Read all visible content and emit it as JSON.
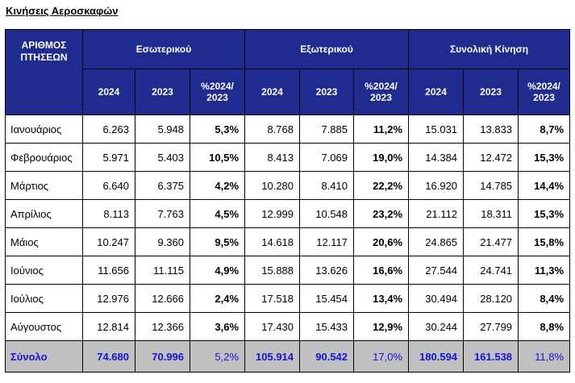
{
  "title": "Κινήσεις Αεροσκαφών",
  "header": {
    "col0": "ΑΡΙΘΜΟΣ ΠΤΗΣΕΩΝ",
    "groups": [
      "Εσωτερικού",
      "Εξωτερικού",
      "Συνολική Κίνηση"
    ],
    "sub": [
      "2024",
      "2023",
      "%2024/ 2023"
    ]
  },
  "rows": [
    {
      "month": "Ιανουάριος",
      "vals": [
        "6.263",
        "5.948",
        "5,3%",
        "8.768",
        "7.885",
        "11,2%",
        "15.031",
        "13.833",
        "8,7%"
      ]
    },
    {
      "month": "Φεβρουάριος",
      "vals": [
        "5.971",
        "5.403",
        "10,5%",
        "8.413",
        "7.069",
        "19,0%",
        "14.384",
        "12.472",
        "15,3%"
      ]
    },
    {
      "month": "Μάρτιος",
      "vals": [
        "6.640",
        "6.375",
        "4,2%",
        "10.280",
        "8.410",
        "22,2%",
        "16.920",
        "14.785",
        "14,4%"
      ]
    },
    {
      "month": "Απρίλιος",
      "vals": [
        "8.113",
        "7.763",
        "4,5%",
        "12.999",
        "10.548",
        "23,2%",
        "21.112",
        "18.311",
        "15,3%"
      ]
    },
    {
      "month": "Μάιος",
      "vals": [
        "10.247",
        "9.360",
        "9,5%",
        "14.618",
        "12.117",
        "20,6%",
        "24.865",
        "21.477",
        "15,8%"
      ]
    },
    {
      "month": "Ιούνιος",
      "vals": [
        "11.656",
        "11.115",
        "4,9%",
        "15.888",
        "13.626",
        "16,6%",
        "27.544",
        "24.741",
        "11,3%"
      ]
    },
    {
      "month": "Ιούλιος",
      "vals": [
        "12.976",
        "12.666",
        "2,4%",
        "17.518",
        "15.454",
        "13,4%",
        "30.494",
        "28.120",
        "8,4%"
      ]
    },
    {
      "month": "Αύγουστος",
      "vals": [
        "12.814",
        "12.366",
        "3,6%",
        "17.430",
        "15.433",
        "12,9%",
        "30.244",
        "27.799",
        "8,8%"
      ]
    }
  ],
  "total": {
    "label": "Σύνολο",
    "vals": [
      "74.680",
      "70.996",
      "5,2%",
      "105.914",
      "90.542",
      "17,0%",
      "180.594",
      "161.538",
      "11,8%"
    ]
  },
  "colors": {
    "header_bg": "#1f2b8f",
    "total_bg": "#c0c0c0",
    "total_text": "#1414d8"
  }
}
